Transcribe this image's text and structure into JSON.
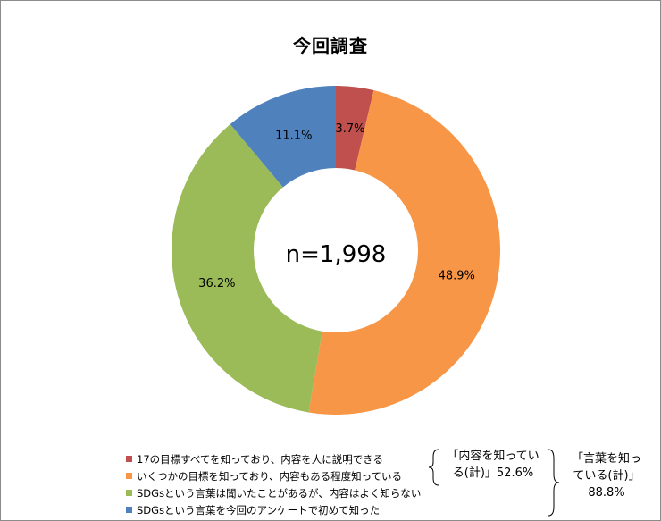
{
  "chart_data": {
    "type": "pie",
    "title": "今回調査",
    "center_label": "n=1,998",
    "slices": [
      {
        "label": "17の目標すべてを知っており、内容を人に説明できる",
        "value": 3.7,
        "value_label": "3.7%",
        "color": "#c0504d"
      },
      {
        "label": "いくつかの目標を知っており、内容もある程度知っている",
        "value": 48.9,
        "value_label": "48.9%",
        "color": "#f79646"
      },
      {
        "label": "SDGsという言葉は聞いたことがあるが、内容はよく知らない",
        "value": 36.2,
        "value_label": "36.2%",
        "color": "#9bbb59"
      },
      {
        "label": "SDGsという言葉を今回のアンケートで初めて知った",
        "value": 11.1,
        "value_label": "11.1%",
        "color": "#4f81bd"
      }
    ],
    "legend_position": "bottom",
    "annotations": {
      "content_known_line1": "「内容を知ってい",
      "content_known_line2": "る(計)」52.6%",
      "word_known_line1": "「言葉を知っ",
      "word_known_line2": "ている(計)」",
      "word_known_line3": "88.8%"
    }
  }
}
